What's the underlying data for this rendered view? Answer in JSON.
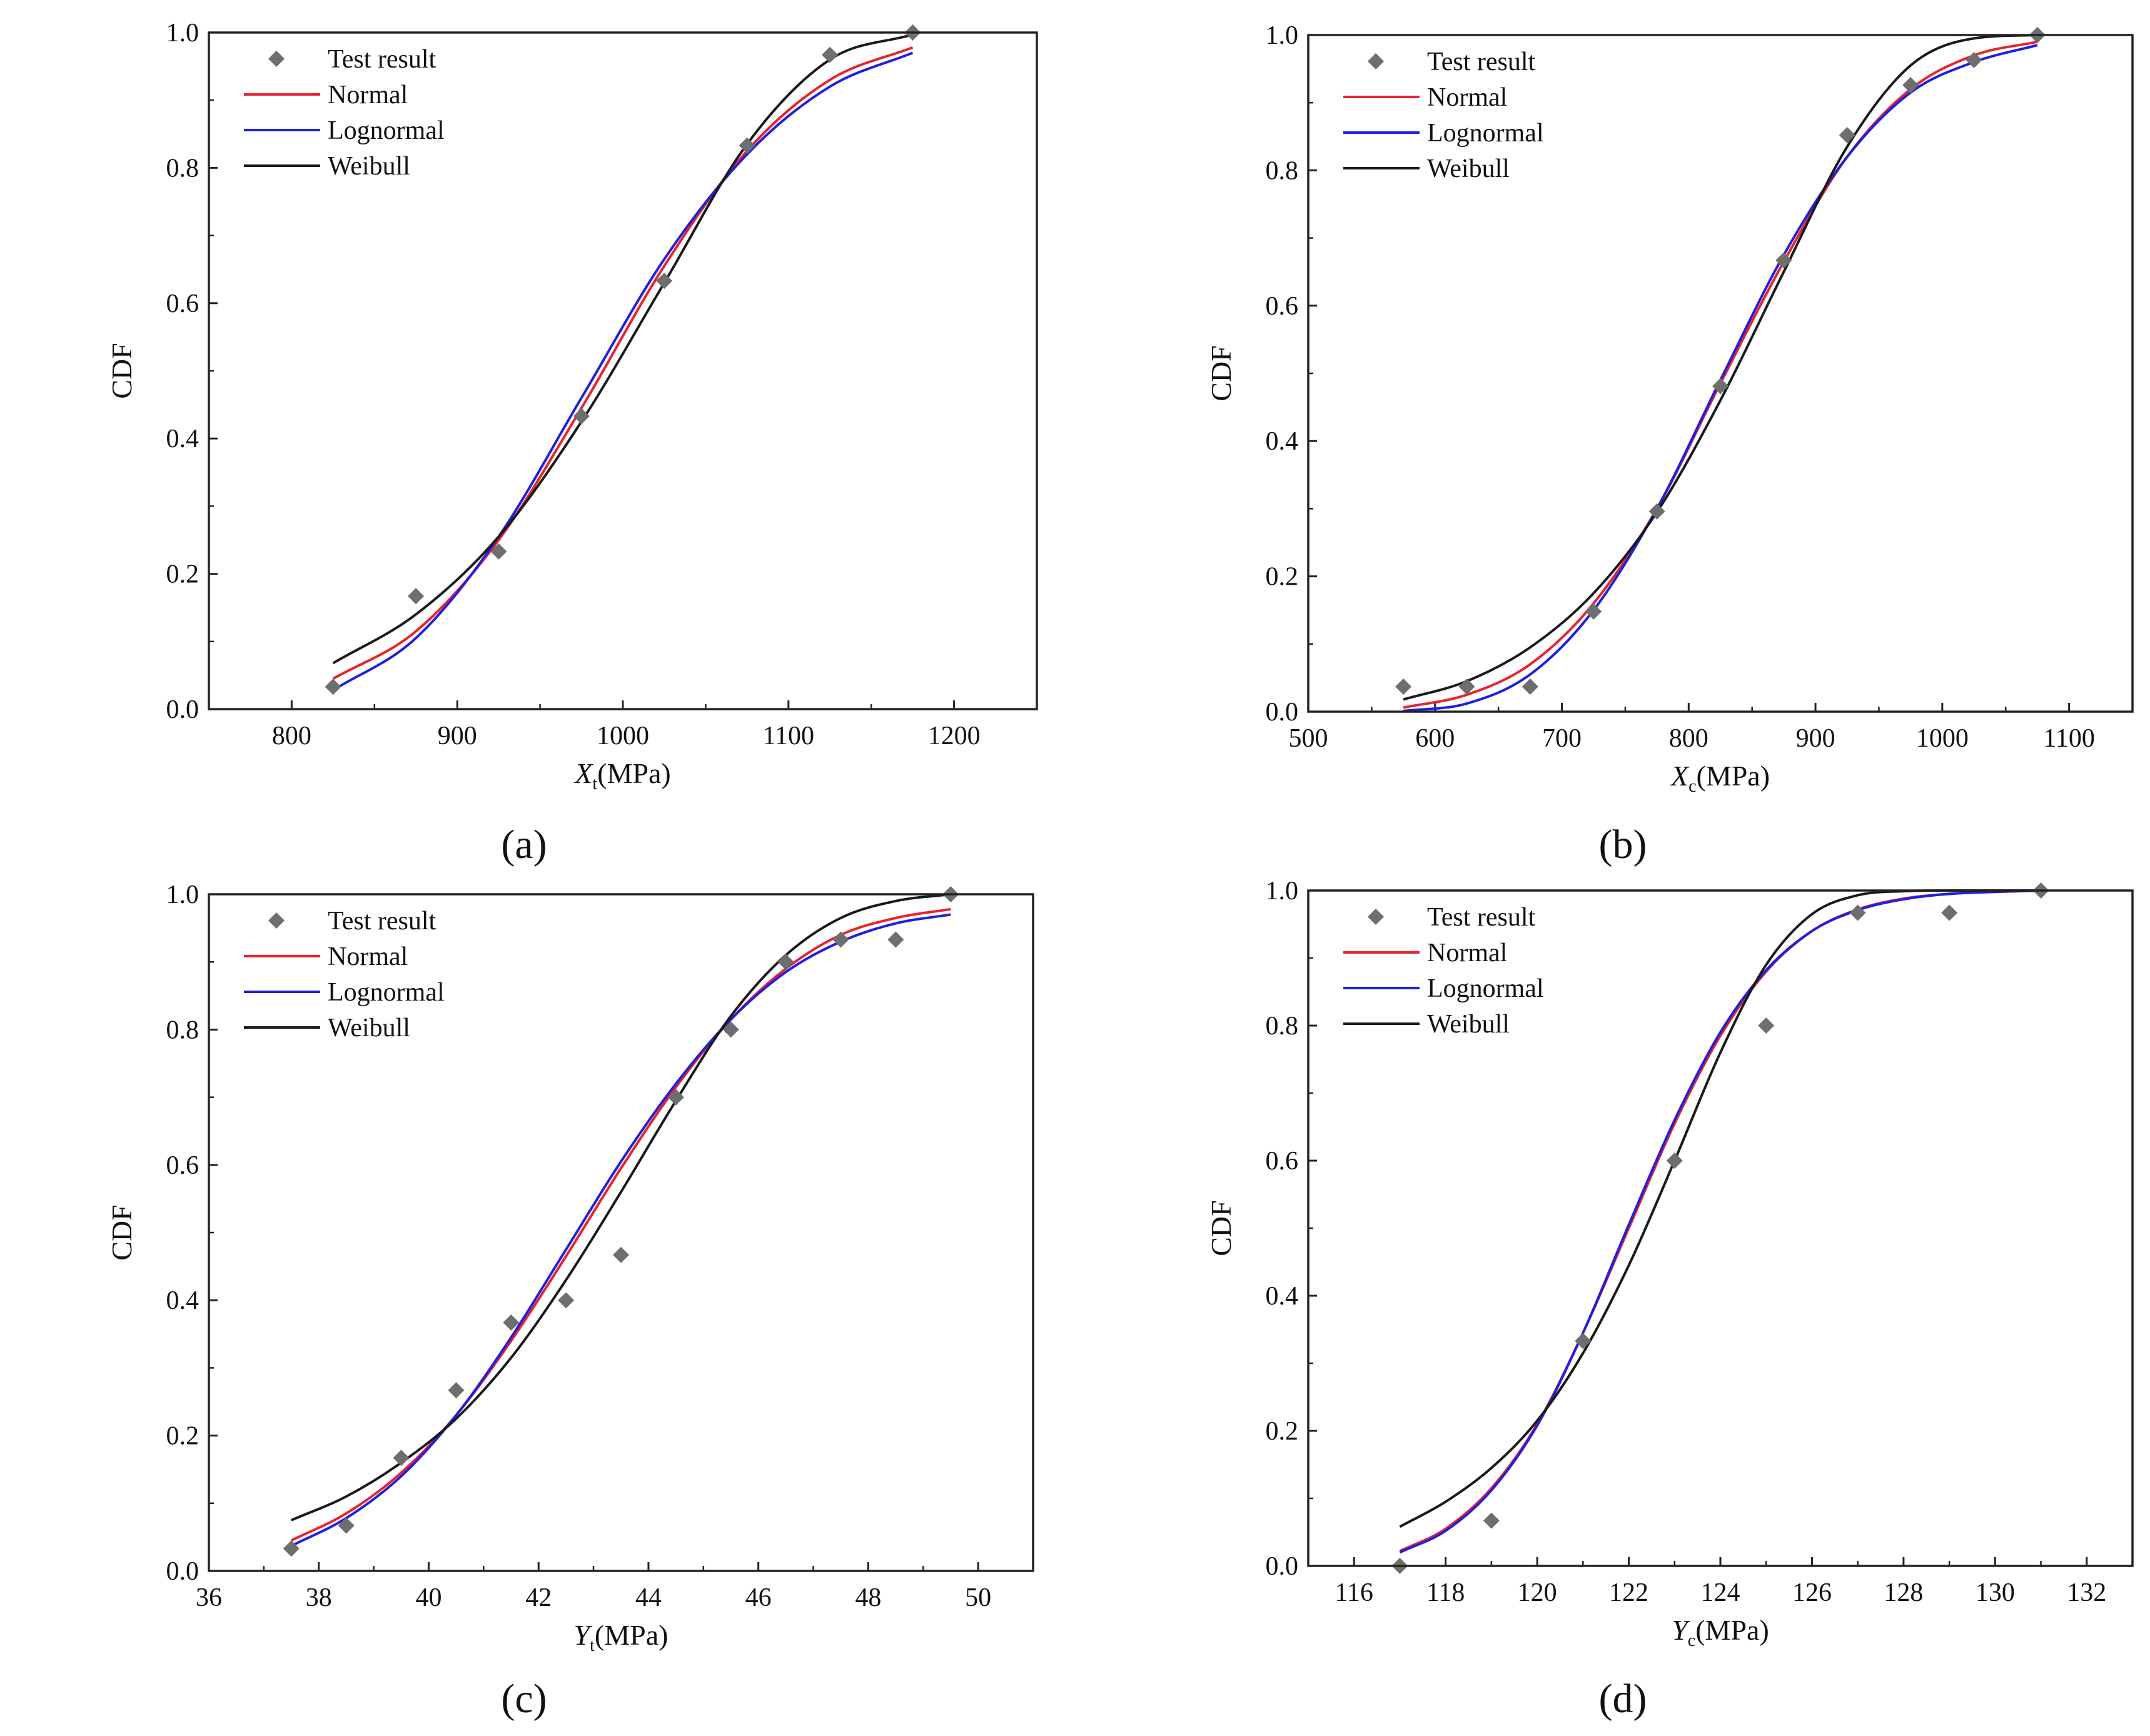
{
  "colors": {
    "normal": "#e8232b",
    "lognormal": "#1f1fe0",
    "weibull": "#1a1a1a",
    "marker": "#6e6e6e",
    "axis": "#222222"
  },
  "legend_labels": {
    "test": "Test result",
    "normal": "Normal",
    "lognormal": "Lognormal",
    "weibull": "Weibull"
  },
  "chart_data": [
    {
      "id": "a",
      "type": "line",
      "panel_label": "(a)",
      "ylabel": "CDF",
      "xlabel_symbol": "X",
      "xlabel_sub": "t",
      "xlabel_unit": "(MPa)",
      "xlim": [
        750,
        1250
      ],
      "ylim": [
        0,
        1
      ],
      "xticks": [
        800,
        900,
        1000,
        1100,
        1200
      ],
      "yticks": [
        0.0,
        0.2,
        0.4,
        0.6,
        0.8,
        1.0
      ],
      "legend_position": "top-left",
      "test_result": {
        "x": [
          825,
          875,
          925,
          975,
          1025,
          1075,
          1125,
          1175
        ],
        "y": [
          0.033,
          0.167,
          0.233,
          0.433,
          0.633,
          0.833,
          0.967,
          1.0
        ]
      },
      "series": [
        {
          "name": "Normal",
          "x": [
            825,
            875,
            925,
            975,
            1025,
            1075,
            1125,
            1175
          ],
          "y": [
            0.045,
            0.115,
            0.25,
            0.445,
            0.655,
            0.825,
            0.93,
            0.978
          ]
        },
        {
          "name": "Lognormal",
          "x": [
            825,
            875,
            925,
            975,
            1025,
            1075,
            1125,
            1175
          ],
          "y": [
            0.028,
            0.105,
            0.255,
            0.46,
            0.665,
            0.82,
            0.92,
            0.97
          ]
        },
        {
          "name": "Weibull",
          "x": [
            825,
            875,
            925,
            975,
            1025,
            1075,
            1125,
            1175
          ],
          "y": [
            0.068,
            0.14,
            0.255,
            0.425,
            0.63,
            0.835,
            0.96,
            0.997
          ]
        }
      ]
    },
    {
      "id": "b",
      "type": "line",
      "panel_label": "(b)",
      "ylabel": "CDF",
      "xlabel_symbol": "X",
      "xlabel_sub": "c",
      "xlabel_unit": "(MPa)",
      "xlim": [
        500,
        1150
      ],
      "ylim": [
        0,
        1
      ],
      "xticks": [
        500,
        600,
        700,
        800,
        900,
        1000,
        1100
      ],
      "yticks": [
        0.0,
        0.2,
        0.4,
        0.6,
        0.8,
        1.0
      ],
      "legend_position": "top-left",
      "test_result": {
        "x": [
          575,
          625,
          675,
          725,
          775,
          825,
          875,
          925,
          975,
          1025,
          1075
        ],
        "y": [
          0.037,
          0.037,
          0.037,
          0.148,
          0.296,
          0.481,
          0.667,
          0.852,
          0.926,
          0.963,
          1.0
        ]
      },
      "series": [
        {
          "name": "Normal",
          "x": [
            575,
            625,
            675,
            725,
            775,
            825,
            875,
            925,
            975,
            1025,
            1075
          ],
          "y": [
            0.006,
            0.025,
            0.07,
            0.16,
            0.3,
            0.485,
            0.665,
            0.82,
            0.92,
            0.97,
            0.99
          ]
        },
        {
          "name": "Lognormal",
          "x": [
            575,
            625,
            675,
            725,
            775,
            825,
            875,
            925,
            975,
            1025,
            1075
          ],
          "y": [
            0.001,
            0.012,
            0.055,
            0.15,
            0.3,
            0.49,
            0.675,
            0.82,
            0.915,
            0.96,
            0.985
          ]
        },
        {
          "name": "Weibull",
          "x": [
            575,
            625,
            675,
            725,
            775,
            825,
            875,
            925,
            975,
            1025,
            1075
          ],
          "y": [
            0.018,
            0.045,
            0.095,
            0.175,
            0.295,
            0.46,
            0.65,
            0.835,
            0.955,
            0.995,
            1.0
          ]
        }
      ]
    },
    {
      "id": "c",
      "type": "line",
      "panel_label": "(c)",
      "ylabel": "CDF",
      "xlabel_symbol": "Y",
      "xlabel_sub": "t",
      "xlabel_unit": "(MPa)",
      "xlim": [
        36,
        51
      ],
      "ylim": [
        0,
        1
      ],
      "xticks": [
        36,
        38,
        40,
        42,
        44,
        46,
        48,
        50
      ],
      "yticks": [
        0.0,
        0.2,
        0.4,
        0.6,
        0.8,
        1.0
      ],
      "legend_position": "top-left",
      "test_result": {
        "x": [
          37.5,
          38.5,
          39.5,
          40.5,
          41.5,
          42.5,
          43.5,
          44.5,
          45.5,
          46.5,
          47.5,
          48.5,
          49.5
        ],
        "y": [
          0.033,
          0.067,
          0.167,
          0.267,
          0.367,
          0.4,
          0.467,
          0.7,
          0.8,
          0.9,
          0.933,
          0.933,
          1.0
        ]
      },
      "series": [
        {
          "name": "Normal",
          "x": [
            37.5,
            38.5,
            39.5,
            40.5,
            41.5,
            42.5,
            43.5,
            44.5,
            45.5,
            46.5,
            47.5,
            48.5,
            49.5
          ],
          "y": [
            0.045,
            0.085,
            0.145,
            0.23,
            0.34,
            0.465,
            0.595,
            0.715,
            0.815,
            0.89,
            0.94,
            0.965,
            0.978
          ]
        },
        {
          "name": "Lognormal",
          "x": [
            37.5,
            38.5,
            39.5,
            40.5,
            41.5,
            42.5,
            43.5,
            44.5,
            45.5,
            46.5,
            47.5,
            48.5,
            49.5
          ],
          "y": [
            0.037,
            0.078,
            0.14,
            0.23,
            0.345,
            0.475,
            0.605,
            0.72,
            0.815,
            0.885,
            0.93,
            0.957,
            0.97
          ]
        },
        {
          "name": "Weibull",
          "x": [
            37.5,
            38.5,
            39.5,
            40.5,
            41.5,
            42.5,
            43.5,
            44.5,
            45.5,
            46.5,
            47.5,
            48.5,
            49.5
          ],
          "y": [
            0.075,
            0.11,
            0.16,
            0.225,
            0.315,
            0.43,
            0.56,
            0.695,
            0.82,
            0.91,
            0.965,
            0.99,
            1.0
          ]
        }
      ]
    },
    {
      "id": "d",
      "type": "line",
      "panel_label": "(d)",
      "ylabel": "CDF",
      "xlabel_symbol": "Y",
      "xlabel_sub": "c",
      "xlabel_unit": "(MPa)",
      "xlim": [
        115,
        133
      ],
      "ylim": [
        0,
        1
      ],
      "xticks": [
        116,
        118,
        120,
        122,
        124,
        126,
        128,
        130,
        132
      ],
      "yticks": [
        0.0,
        0.2,
        0.4,
        0.6,
        0.8,
        1.0
      ],
      "legend_position": "top-left",
      "test_result": {
        "x": [
          117,
          119,
          121,
          123,
          125,
          127,
          129,
          131
        ],
        "y": [
          0.0,
          0.067,
          0.333,
          0.6,
          0.8,
          0.967,
          0.967,
          1.0
        ]
      },
      "series": [
        {
          "name": "Normal",
          "x": [
            117,
            118,
            119,
            120,
            121,
            122,
            123,
            124,
            125,
            126,
            127,
            128,
            129,
            130,
            131
          ],
          "y": [
            0.022,
            0.055,
            0.115,
            0.21,
            0.345,
            0.5,
            0.655,
            0.785,
            0.88,
            0.94,
            0.972,
            0.988,
            0.995,
            0.998,
            1.0
          ]
        },
        {
          "name": "Lognormal",
          "x": [
            117,
            118,
            119,
            120,
            121,
            122,
            123,
            124,
            125,
            126,
            127,
            128,
            129,
            130,
            131
          ],
          "y": [
            0.02,
            0.052,
            0.112,
            0.208,
            0.345,
            0.505,
            0.66,
            0.79,
            0.882,
            0.94,
            0.971,
            0.987,
            0.995,
            0.998,
            1.0
          ]
        },
        {
          "name": "Weibull",
          "x": [
            117,
            118,
            119,
            120,
            121,
            122,
            123,
            124,
            125,
            126,
            127,
            128,
            129,
            130,
            131
          ],
          "y": [
            0.058,
            0.095,
            0.145,
            0.215,
            0.315,
            0.445,
            0.6,
            0.76,
            0.89,
            0.965,
            0.993,
            0.999,
            1.0,
            1.0,
            1.0
          ]
        }
      ]
    }
  ]
}
